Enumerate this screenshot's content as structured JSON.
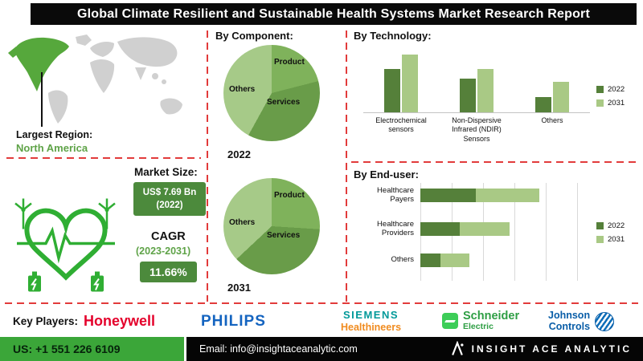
{
  "header": {
    "title": "Global Climate Resilient and Sustainable Health Systems Market Research Report"
  },
  "region": {
    "label": "Largest Region:",
    "value": "North America"
  },
  "market": {
    "size_label": "Market Size:",
    "size_value_line1": "US$ 7.69 Bn",
    "size_value_line2": "(2022)",
    "cagr_label": "CAGR",
    "cagr_period": "(2023-2031)",
    "cagr_value": "11.66%"
  },
  "sections": {
    "component_title": "By Component:",
    "component_year1": "2022",
    "component_year2": "2031",
    "technology_title": "By Technology:",
    "end_user_title": "By End-user:"
  },
  "key_players": {
    "label": "Key Players:",
    "honeywell": "Honeywell",
    "philips": "PHILIPS",
    "siemens_line1": "SIEMENS",
    "siemens_line2": "Healthineers",
    "schneider_line1": "Schneider",
    "schneider_line2": "Electric",
    "johnson_line1": "Johnson",
    "johnson_line2": "Controls"
  },
  "footer": {
    "phone": "US: +1 551 226 6109",
    "email": "Email: info@insightaceanalytic.com",
    "brand": "INSIGHT ACE ANALYTIC"
  },
  "colors": {
    "accent_green_dark": "#55803a",
    "accent_green_light": "#a9c985",
    "box_green": "#4c8a3c",
    "region_green": "#5fa348",
    "dashed_red": "#e23b3b",
    "footer_green": "#3ba639"
  },
  "icons": {
    "insight_ace_logo": "stylized-A-monogram",
    "johnson_controls_mark": "striped-globe-circle",
    "map_highlight": "north-america-green"
  },
  "chart_data": [
    {
      "id": "component-2022",
      "type": "pie",
      "title": "By Component: 2022",
      "labels": [
        "Product",
        "Services",
        "Others"
      ],
      "values": [
        21,
        37,
        42
      ],
      "colors": [
        "#7fb25b",
        "#699c49",
        "#a6ca88"
      ]
    },
    {
      "id": "component-2031",
      "type": "pie",
      "title": "By Component: 2031",
      "labels": [
        "Product",
        "Services",
        "Others"
      ],
      "values": [
        26,
        37,
        37
      ],
      "colors": [
        "#7fb25b",
        "#699c49",
        "#a6ca88"
      ]
    },
    {
      "id": "technology",
      "type": "bar",
      "title": "By Technology:",
      "categories": [
        "Electrochemical sensors",
        "Non-Dispersive Infrared (NDIR) Sensors",
        "Others"
      ],
      "series": [
        {
          "name": "2022",
          "color": "#55803a",
          "values": [
            47,
            37,
            17
          ]
        },
        {
          "name": "2031",
          "color": "#a9c985",
          "values": [
            63,
            47,
            33
          ]
        }
      ],
      "ylim": [
        0,
        70
      ],
      "grid": false,
      "legend_position": "right"
    },
    {
      "id": "end-user",
      "type": "bar-horizontal-stacked",
      "title": "By End-user:",
      "categories": [
        "Healthcare Payers",
        "Healthcare Providers",
        "Others"
      ],
      "series": [
        {
          "name": "2022",
          "color": "#55803a",
          "values": [
            42,
            30,
            15
          ]
        },
        {
          "name": "2031",
          "color": "#a9c985",
          "values": [
            48,
            38,
            22
          ]
        }
      ],
      "xlim": [
        0,
        120
      ],
      "grid": true,
      "legend_position": "right"
    }
  ]
}
